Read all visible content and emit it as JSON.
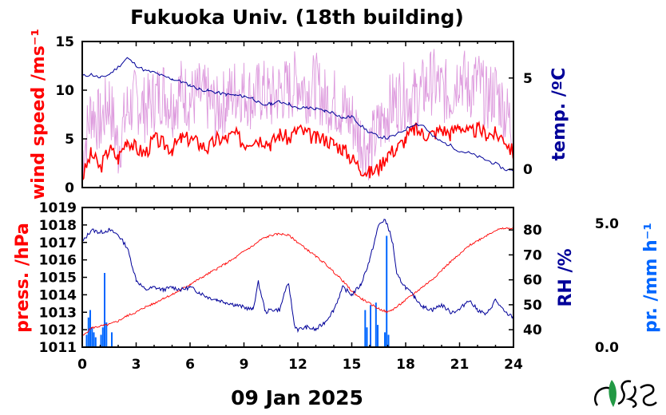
{
  "title": "Fukuoka Univ. (18th building)",
  "date_label": "09 Jan 2025",
  "logo_text": "MES",
  "colors": {
    "wind": "#ff0000",
    "gust": "#dd99dd",
    "temp": "#000099",
    "press": "#ff0000",
    "rh": "#000099",
    "precip": "#0066ff",
    "axis": "#000000"
  },
  "chart_data": [
    {
      "type": "line",
      "title": "Fukuoka Univ. (18th building)",
      "xlabel": "",
      "xlim": [
        0,
        24
      ],
      "x_ticks": [
        "0",
        "3",
        "6",
        "9",
        "12",
        "15",
        "18",
        "21",
        "24"
      ],
      "y_left": {
        "label": "wind speed /ms⁻¹",
        "lim": [
          0,
          15
        ],
        "ticks": [
          "0",
          "5",
          "10",
          "15"
        ]
      },
      "y_right": {
        "label": "temp. /ºC",
        "lim": [
          -1,
          7
        ],
        "ticks": [
          "0",
          "5"
        ]
      },
      "series": [
        {
          "name": "wind speed (gust)",
          "axis": "left",
          "x": [
            0,
            0.5,
            1,
            1.5,
            2,
            2.5,
            3,
            3.5,
            4,
            4.5,
            5,
            5.5,
            6,
            6.5,
            7,
            7.5,
            8,
            8.5,
            9,
            9.5,
            10,
            10.5,
            11,
            11.5,
            12,
            12.5,
            13,
            13.5,
            14,
            14.5,
            15,
            15.5,
            16,
            16.5,
            17,
            17.5,
            18,
            18.5,
            19,
            19.5,
            20,
            20.5,
            21,
            21.5,
            22,
            22.5,
            23,
            23.5,
            24
          ],
          "y": [
            3,
            8,
            6.5,
            9,
            4,
            8,
            9,
            8,
            9,
            10,
            8.5,
            10,
            9,
            9.5,
            9,
            8,
            9,
            10,
            10,
            9,
            10,
            9,
            10,
            10,
            11,
            10,
            10.5,
            9,
            9,
            8,
            7,
            5,
            4,
            6,
            8,
            9,
            9.5,
            9,
            10,
            11,
            10,
            9.5,
            12,
            10,
            11,
            9,
            10,
            8,
            6
          ]
        },
        {
          "name": "wind speed",
          "axis": "left",
          "x": [
            0,
            0.5,
            1,
            1.5,
            2,
            2.5,
            3,
            3.5,
            4,
            4.5,
            5,
            5.5,
            6,
            6.5,
            7,
            7.5,
            8,
            8.5,
            9,
            9.5,
            10,
            10.5,
            11,
            11.5,
            12,
            12.5,
            13,
            13.5,
            14,
            14.5,
            15,
            15.5,
            16,
            16.5,
            17,
            17.5,
            18,
            18.5,
            19,
            19.5,
            20,
            20.5,
            21,
            21.5,
            22,
            22.5,
            23,
            23.5,
            24
          ],
          "y": [
            1,
            3.5,
            2,
            4,
            3,
            5,
            4,
            3.5,
            5,
            4.5,
            4,
            5,
            5,
            4.5,
            4,
            5,
            5,
            5.5,
            4.5,
            5,
            5,
            4.5,
            5.5,
            5,
            6,
            5.5,
            5,
            5,
            4.5,
            4,
            3,
            2,
            1.5,
            2,
            3.5,
            4,
            5,
            6,
            5.5,
            5.5,
            6,
            5.5,
            6.5,
            5.5,
            6,
            5.5,
            5.5,
            5,
            3.5
          ]
        },
        {
          "name": "temp.",
          "axis": "right",
          "x": [
            0,
            0.5,
            1,
            1.5,
            2,
            2.5,
            3,
            3.5,
            4,
            4.5,
            5,
            5.5,
            6,
            6.5,
            7,
            7.5,
            8,
            8.5,
            9,
            9.5,
            10,
            10.5,
            11,
            11.5,
            12,
            12.5,
            13,
            13.5,
            14,
            14.5,
            15,
            15.5,
            16,
            16.5,
            17,
            17.5,
            18,
            18.5,
            19,
            19.5,
            20,
            20.5,
            21,
            21.5,
            22,
            22.5,
            23,
            23.5,
            24
          ],
          "y": [
            5.1,
            5.2,
            5.0,
            5.2,
            5.6,
            6.1,
            5.7,
            5.4,
            5.3,
            5.1,
            4.95,
            4.8,
            4.6,
            4.4,
            4.3,
            4.2,
            4.1,
            4.05,
            4.0,
            3.9,
            3.5,
            3.6,
            3.7,
            3.6,
            3.3,
            3.4,
            3.3,
            3.2,
            3.1,
            2.8,
            2.9,
            2.4,
            2.0,
            1.8,
            1.7,
            1.9,
            2.2,
            2.5,
            2.4,
            1.8,
            1.5,
            1.3,
            1.0,
            0.9,
            0.7,
            0.5,
            0.3,
            0.0,
            -0.1
          ]
        }
      ]
    },
    {
      "type": "line",
      "xlabel": "09 Jan 2025",
      "xlim": [
        0,
        24
      ],
      "x_ticks": [
        "0",
        "3",
        "6",
        "9",
        "12",
        "15",
        "18",
        "21",
        "24"
      ],
      "y_left": {
        "label": "press. /hPa",
        "lim": [
          1011,
          1019
        ],
        "ticks": [
          "1011",
          "1012",
          "1013",
          "1014",
          "1015",
          "1016",
          "1017",
          "1018",
          "1019"
        ]
      },
      "y_right": {
        "label": "RH /%",
        "lim": [
          33,
          89
        ],
        "ticks": [
          "40",
          "50",
          "60",
          "70",
          "80"
        ]
      },
      "y_right2": {
        "label": "pr. /mm h⁻¹",
        "lim": [
          0,
          5.0
        ],
        "ticks": [
          "0.0",
          "5.0"
        ]
      },
      "series": [
        {
          "name": "press.",
          "axis": "left",
          "x": [
            0,
            0.5,
            1,
            1.5,
            2,
            2.5,
            3,
            3.5,
            4,
            4.5,
            5,
            5.5,
            6,
            6.5,
            7,
            7.5,
            8,
            8.5,
            9,
            9.5,
            10,
            10.5,
            11,
            11.5,
            12,
            12.5,
            13,
            13.5,
            14,
            14.5,
            15,
            15.5,
            16,
            16.5,
            17,
            17.5,
            18,
            18.5,
            19,
            19.5,
            20,
            20.5,
            21,
            21.5,
            22,
            22.5,
            23,
            23.5,
            24
          ],
          "y": [
            1011.6,
            1012.1,
            1012.2,
            1012.3,
            1012.5,
            1012.8,
            1013.0,
            1013.3,
            1013.5,
            1013.8,
            1014.0,
            1014.3,
            1014.6,
            1014.9,
            1015.2,
            1015.5,
            1015.8,
            1016.1,
            1016.5,
            1016.8,
            1017.2,
            1017.4,
            1017.5,
            1017.4,
            1017.0,
            1016.6,
            1016.2,
            1015.8,
            1015.3,
            1014.8,
            1014.2,
            1013.8,
            1013.5,
            1013.2,
            1013.0,
            1013.3,
            1013.7,
            1014.1,
            1014.5,
            1014.9,
            1015.4,
            1015.9,
            1016.3,
            1016.8,
            1017.1,
            1017.4,
            1017.7,
            1017.8,
            1017.8
          ]
        },
        {
          "name": "RH",
          "axis": "right",
          "x": [
            0,
            0.5,
            1,
            1.5,
            2,
            2.5,
            3,
            3.5,
            4,
            4.5,
            5,
            5.5,
            6,
            6.5,
            7,
            7.5,
            8,
            8.5,
            9,
            9.5,
            9.8,
            10.2,
            10.5,
            11,
            11.3,
            11.5,
            11.8,
            12,
            12.5,
            13,
            13.5,
            14,
            14.5,
            15,
            15.5,
            16,
            16.5,
            16.8,
            17,
            17.3,
            17.5,
            18,
            18.5,
            19,
            19.5,
            20,
            20.5,
            21,
            21.5,
            22,
            22.5,
            23,
            23.5,
            24
          ],
          "y": [
            75,
            80,
            79,
            80,
            78,
            73,
            60,
            56,
            57,
            56,
            57,
            56,
            57,
            55,
            53,
            52,
            51,
            50,
            49,
            48,
            59,
            47,
            48,
            48,
            56,
            58,
            42,
            40,
            41,
            40,
            43,
            48,
            57,
            54,
            58,
            68,
            82,
            84,
            82,
            74,
            62,
            57,
            53,
            49,
            48,
            50,
            47,
            48,
            52,
            48,
            46,
            52,
            47,
            45
          ]
        },
        {
          "name": "pr.",
          "axis": "right2",
          "type": "bar",
          "x": [
            0.2,
            0.3,
            0.4,
            0.5,
            0.6,
            0.7,
            1.0,
            1.1,
            1.2,
            1.3,
            1.6,
            15.7,
            15.8,
            16.0,
            16.3,
            16.4,
            16.8,
            16.9,
            17.0
          ],
          "y": [
            0.5,
            1.2,
            1.5,
            0.8,
            0.6,
            0.4,
            0.5,
            0.8,
            3.0,
            1.0,
            0.6,
            1.5,
            0.8,
            1.7,
            1.8,
            0.9,
            0.6,
            4.5,
            0.5
          ]
        }
      ]
    }
  ],
  "labels": {
    "wind": "wind speed /ms⁻¹",
    "temp": "temp. /ºC",
    "press": "press. /hPa",
    "rh": "RH /%",
    "precip": "pr. /mm h⁻¹"
  }
}
